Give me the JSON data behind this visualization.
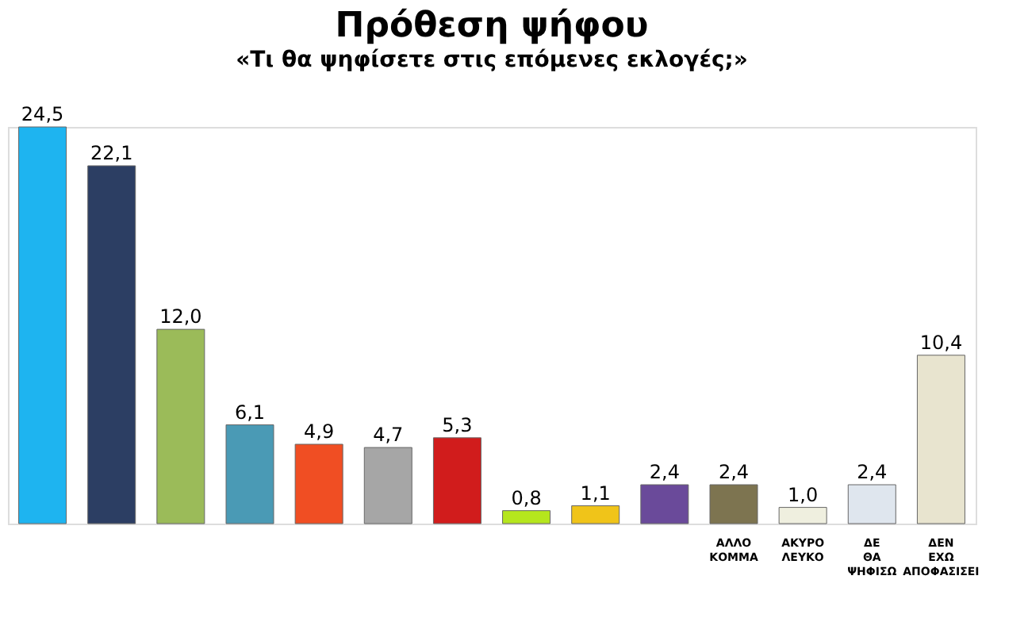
{
  "chart_data": {
    "type": "bar",
    "title": "Πρόθεση ψήφου",
    "subtitle": "«Τι θα ψηφίσετε στις επόμενες εκλογές;»",
    "categories": [
      null,
      null,
      null,
      null,
      null,
      null,
      null,
      null,
      null,
      null,
      "ΑΛΛΟ ΚΟΜΜΑ",
      "ΑΚΥΡΟ ΛΕΥΚΟ",
      "ΔΕ ΘΑ ΨΗΦΙΣΩ",
      "ΔΕΝ ΕΧΩ ΑΠΟΦΑΣΙΣΕΙ"
    ],
    "values": [
      24.5,
      22.1,
      12.0,
      6.1,
      4.9,
      4.7,
      5.3,
      0.8,
      1.1,
      2.4,
      2.4,
      1.0,
      2.4,
      10.4
    ],
    "value_labels": [
      "24,5",
      "22,1",
      "12,0",
      "6,1",
      "4,9",
      "4,7",
      "5,3",
      "0,8",
      "1,1",
      "2,4",
      "2,4",
      "1,0",
      "2,4",
      "10,4"
    ],
    "colors": [
      "#1eb4f0",
      "#2c3e63",
      "#9bbb59",
      "#4a9ab5",
      "#f04e23",
      "#a6a6a6",
      "#d11c1c",
      "#b5e61d",
      "#f0c419",
      "#6a4a9a",
      "#7d7450",
      "#efefdf",
      "#dfe6ee",
      "#e8e4cf"
    ]
  }
}
